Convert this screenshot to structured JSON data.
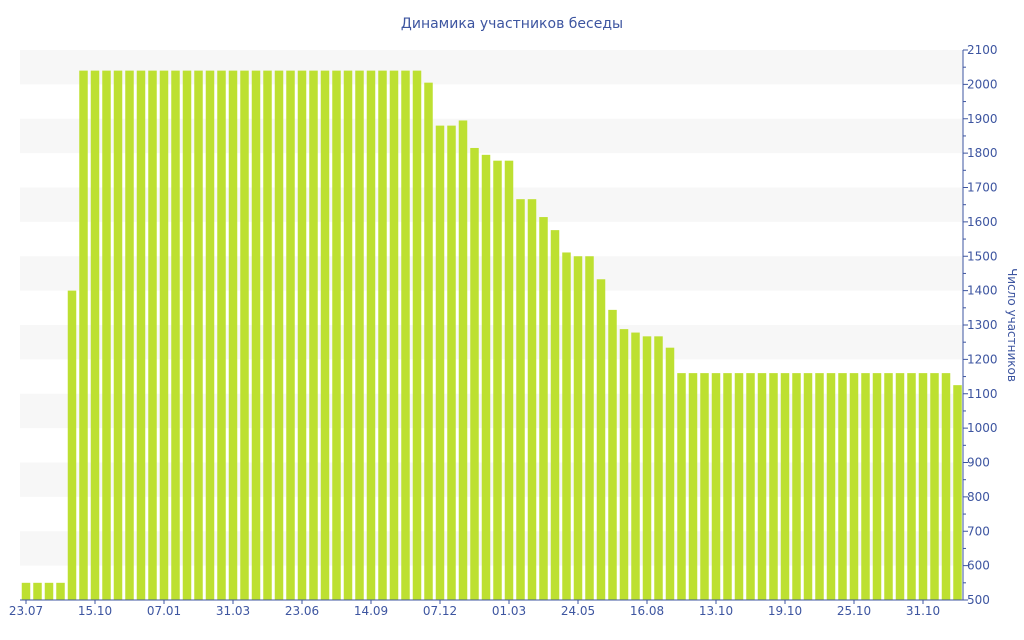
{
  "chart_data": {
    "type": "bar",
    "title": "Динамика участников беседы",
    "xlabel": "",
    "ylabel": "Число участников",
    "ylim": [
      500,
      2100
    ],
    "y_ticks": [
      500,
      600,
      700,
      800,
      900,
      1000,
      1100,
      1200,
      1300,
      1400,
      1500,
      1600,
      1700,
      1800,
      1900,
      2000,
      2100
    ],
    "y_axis_position": "right",
    "grid": "alternating horizontal bands",
    "x_tick_labels": [
      {
        "index": 0,
        "label": "23.07"
      },
      {
        "index": 6,
        "label": "15.10"
      },
      {
        "index": 12,
        "label": "07.01"
      },
      {
        "index": 18,
        "label": "31.03"
      },
      {
        "index": 24,
        "label": "23.06"
      },
      {
        "index": 30,
        "label": "14.09"
      },
      {
        "index": 36,
        "label": "07.12"
      },
      {
        "index": 42,
        "label": "01.03"
      },
      {
        "index": 48,
        "label": "24.05"
      },
      {
        "index": 54,
        "label": "16.08"
      },
      {
        "index": 60,
        "label": "13.10"
      },
      {
        "index": 66,
        "label": "19.10"
      },
      {
        "index": 72,
        "label": "25.10"
      },
      {
        "index": 78,
        "label": "31.10"
      }
    ],
    "values": [
      550,
      550,
      550,
      550,
      1400,
      2040,
      2040,
      2040,
      2040,
      2040,
      2040,
      2040,
      2040,
      2040,
      2040,
      2040,
      2040,
      2040,
      2040,
      2040,
      2040,
      2040,
      2040,
      2040,
      2040,
      2040,
      2040,
      2040,
      2040,
      2040,
      2040,
      2040,
      2040,
      2040,
      2040,
      2005,
      1880,
      1880,
      1895,
      1815,
      1795,
      1778,
      1778,
      1666,
      1666,
      1614,
      1576,
      1511,
      1500,
      1500,
      1433,
      1344,
      1288,
      1278,
      1267,
      1267,
      1234,
      1160,
      1160,
      1160,
      1160,
      1160,
      1160,
      1160,
      1160,
      1160,
      1160,
      1160,
      1160,
      1160,
      1160,
      1160,
      1160,
      1160,
      1160,
      1160,
      1160,
      1160,
      1160,
      1160,
      1160,
      1125
    ],
    "colors": {
      "bar": "#bde031",
      "axis": "#3d55a0",
      "band": "#f7f7f7"
    }
  }
}
